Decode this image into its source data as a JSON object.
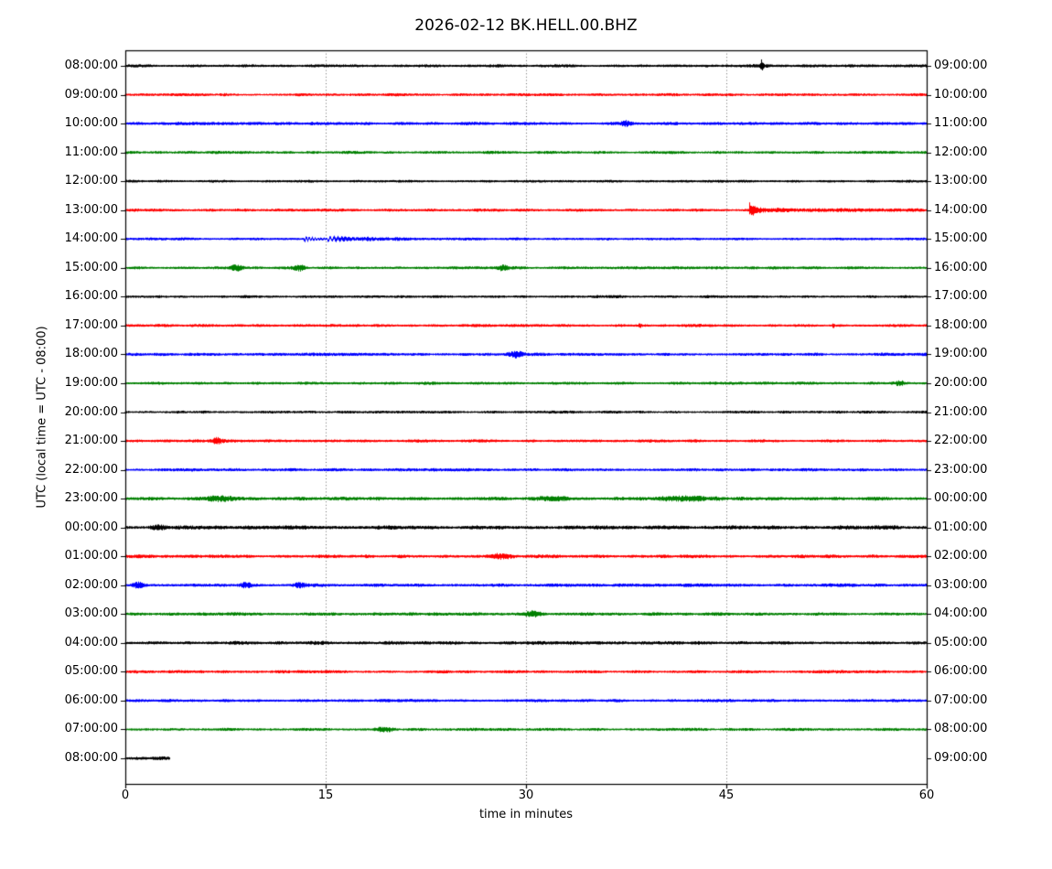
{
  "figure": {
    "title": "2026-02-12 BK.HELL.00.BHZ",
    "xlabel": "time in minutes",
    "ylabel": "UTC (local time = UTC - 08:00)"
  },
  "chart_data": {
    "type": "line",
    "subtype": "helicorder-dayplot",
    "title": "2026-02-12 BK.HELL.00.BHZ",
    "xlabel": "time in minutes",
    "ylabel": "UTC (local time = UTC - 08:00)",
    "xlim": [
      0,
      60
    ],
    "x_ticks": [
      0,
      15,
      30,
      45,
      60
    ],
    "grid": {
      "vertical_dotted_at_minutes": [
        15,
        30,
        45
      ]
    },
    "minutes_per_row": 60,
    "colors_cycle": [
      "#000000",
      "#ff0000",
      "#0000ff",
      "#008000"
    ],
    "rows": [
      {
        "left": "08:00:00",
        "right": "09:00:00",
        "color": "#000000",
        "base": 1.3,
        "end": 60,
        "events": [
          {
            "type": "spike",
            "t": 47.6,
            "amp": 5,
            "dur": 0.18
          },
          {
            "type": "blob",
            "t": 47.6,
            "amp": 1.4,
            "dur": 0.5
          }
        ]
      },
      {
        "left": "09:00:00",
        "right": "10:00:00",
        "color": "#ff0000",
        "base": 1.3,
        "end": 60,
        "events": []
      },
      {
        "left": "10:00:00",
        "right": "11:00:00",
        "color": "#0000ff",
        "base": 1.4,
        "end": 60,
        "events": [
          {
            "type": "blob",
            "t": 37.5,
            "amp": 2.5,
            "dur": 0.3
          }
        ]
      },
      {
        "left": "11:00:00",
        "right": "12:00:00",
        "color": "#008000",
        "base": 1.3,
        "end": 60,
        "events": []
      },
      {
        "left": "12:00:00",
        "right": "13:00:00",
        "color": "#000000",
        "base": 1.2,
        "end": 60,
        "events": []
      },
      {
        "left": "13:00:00",
        "right": "14:00:00",
        "color": "#ff0000",
        "base": 1.4,
        "end": 60,
        "events": [
          {
            "type": "tail",
            "t": 46.7,
            "amp": 7,
            "dur": 0.35
          },
          {
            "type": "tail",
            "t": 46.9,
            "amp": 1.0,
            "dur": 9
          }
        ]
      },
      {
        "left": "14:00:00",
        "right": "15:00:00",
        "color": "#0000ff",
        "base": 1.2,
        "end": 60,
        "events": [
          {
            "type": "wave",
            "t": 13.35,
            "amp": 2.8,
            "dur": 0.7,
            "freq": 4.5
          },
          {
            "type": "wave",
            "t": 15.1,
            "amp": 2.2,
            "dur": 1.2,
            "freq": 3.5
          },
          {
            "type": "tail",
            "t": 15.5,
            "amp": 1.1,
            "dur": 6
          }
        ]
      },
      {
        "left": "15:00:00",
        "right": "16:00:00",
        "color": "#008000",
        "base": 1.3,
        "end": 60,
        "events": [
          {
            "type": "blob",
            "t": 8.3,
            "amp": 3,
            "dur": 0.3
          },
          {
            "type": "blob",
            "t": 13.0,
            "amp": 2.8,
            "dur": 0.3
          },
          {
            "type": "blob",
            "t": 28.2,
            "amp": 2.5,
            "dur": 0.3
          }
        ]
      },
      {
        "left": "16:00:00",
        "right": "17:00:00",
        "color": "#000000",
        "base": 1.3,
        "end": 60,
        "events": []
      },
      {
        "left": "17:00:00",
        "right": "18:00:00",
        "color": "#ff0000",
        "base": 1.3,
        "end": 60,
        "events": [
          {
            "type": "spike",
            "t": 38.5,
            "amp": 2.5,
            "dur": 0.15
          },
          {
            "type": "spike",
            "t": 53.0,
            "amp": 2.0,
            "dur": 0.15
          }
        ]
      },
      {
        "left": "18:00:00",
        "right": "19:00:00",
        "color": "#0000ff",
        "base": 1.4,
        "end": 60,
        "events": [
          {
            "type": "blob",
            "t": 29.3,
            "amp": 3,
            "dur": 0.4
          }
        ]
      },
      {
        "left": "19:00:00",
        "right": "20:00:00",
        "color": "#008000",
        "base": 1.3,
        "end": 60,
        "events": [
          {
            "type": "blob",
            "t": 58.0,
            "amp": 2.2,
            "dur": 0.3
          }
        ]
      },
      {
        "left": "20:00:00",
        "right": "21:00:00",
        "color": "#000000",
        "base": 1.3,
        "end": 60,
        "events": []
      },
      {
        "left": "21:00:00",
        "right": "22:00:00",
        "color": "#ff0000",
        "base": 1.4,
        "end": 60,
        "events": [
          {
            "type": "blob",
            "t": 6.8,
            "amp": 3,
            "dur": 0.3
          }
        ]
      },
      {
        "left": "22:00:00",
        "right": "23:00:00",
        "color": "#0000ff",
        "base": 1.4,
        "end": 60,
        "events": []
      },
      {
        "left": "23:00:00",
        "right": "00:00:00",
        "color": "#008000",
        "base": 1.6,
        "end": 60,
        "events": [
          {
            "type": "blob",
            "t": 7,
            "amp": 1.7,
            "dur": 0.8
          },
          {
            "type": "blob",
            "t": 32,
            "amp": 1.6,
            "dur": 0.8
          },
          {
            "type": "blob",
            "t": 42,
            "amp": 1.5,
            "dur": 1.5
          }
        ]
      },
      {
        "left": "00:00:00",
        "right": "01:00:00",
        "color": "#000000",
        "base": 1.8,
        "end": 60,
        "events": [
          {
            "type": "blob",
            "t": 2.5,
            "amp": 1.4,
            "dur": 0.5
          }
        ]
      },
      {
        "left": "01:00:00",
        "right": "02:00:00",
        "color": "#ff0000",
        "base": 1.5,
        "end": 60,
        "events": [
          {
            "type": "blob",
            "t": 28,
            "amp": 2.2,
            "dur": 0.6
          }
        ]
      },
      {
        "left": "02:00:00",
        "right": "03:00:00",
        "color": "#0000ff",
        "base": 1.5,
        "end": 60,
        "events": [
          {
            "type": "blob",
            "t": 1,
            "amp": 2.2,
            "dur": 0.3
          },
          {
            "type": "blob",
            "t": 9,
            "amp": 2.0,
            "dur": 0.3
          },
          {
            "type": "blob",
            "t": 13,
            "amp": 1.8,
            "dur": 0.3
          }
        ]
      },
      {
        "left": "03:00:00",
        "right": "04:00:00",
        "color": "#008000",
        "base": 1.5,
        "end": 60,
        "events": [
          {
            "type": "blob",
            "t": 30.6,
            "amp": 2.5,
            "dur": 0.4
          }
        ]
      },
      {
        "left": "04:00:00",
        "right": "05:00:00",
        "color": "#000000",
        "base": 1.6,
        "end": 60,
        "events": []
      },
      {
        "left": "05:00:00",
        "right": "06:00:00",
        "color": "#ff0000",
        "base": 1.4,
        "end": 60,
        "events": []
      },
      {
        "left": "06:00:00",
        "right": "07:00:00",
        "color": "#0000ff",
        "base": 1.4,
        "end": 60,
        "events": []
      },
      {
        "left": "07:00:00",
        "right": "08:00:00",
        "color": "#008000",
        "base": 1.3,
        "end": 60,
        "events": [
          {
            "type": "blob",
            "t": 19.4,
            "amp": 1.7,
            "dur": 0.5
          }
        ]
      },
      {
        "left": "08:00:00",
        "right": "09:00:00",
        "color": "#000000",
        "base": 1.5,
        "end": 3.3,
        "events": []
      }
    ]
  }
}
